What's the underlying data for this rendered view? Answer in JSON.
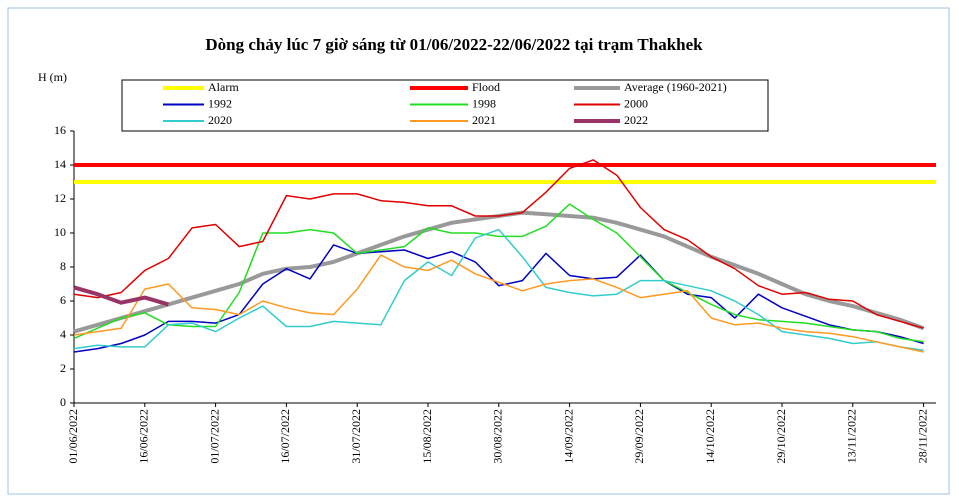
{
  "chart_data": {
    "type": "line",
    "title": "Dòng chảy lúc 7 giờ sáng từ 01/06/2022-22/06/2022 tại trạm Thakhek",
    "y_label": "H (m)",
    "categories": [
      "01/06/2022",
      null,
      null,
      "16/06/2022",
      null,
      null,
      "01/07/2022",
      null,
      null,
      "16/07/2022",
      null,
      null,
      "31/07/2022",
      null,
      null,
      "15/08/2022",
      null,
      null,
      "30/08/2022",
      null,
      null,
      "14/09/2022",
      null,
      null,
      "29/09/2022",
      null,
      null,
      "14/10/2022",
      null,
      null,
      "29/10/2022",
      null,
      null,
      "13/11/2022",
      null,
      null,
      "28/11/2022"
    ],
    "hlines": [
      {
        "name": "Alarm",
        "color": "#ffff00",
        "value": 13
      },
      {
        "name": "Flood",
        "color": "#ff0000",
        "value": 14
      }
    ],
    "series": [
      {
        "name": "Average (1960-2021)",
        "color": "#999999",
        "width": 4,
        "values": [
          4.2,
          4.6,
          5.0,
          5.4,
          5.8,
          6.2,
          6.6,
          7.0,
          7.6,
          7.9,
          8.0,
          8.3,
          8.8,
          9.3,
          9.8,
          10.2,
          10.6,
          10.8,
          11.0,
          11.2,
          11.1,
          11.0,
          10.9,
          10.6,
          10.2,
          9.8,
          9.2,
          8.6,
          8.1,
          7.6,
          7.0,
          6.4,
          6.0,
          5.7,
          5.3,
          4.9,
          4.4
        ]
      },
      {
        "name": "1992",
        "color": "#0000c0",
        "width": 1.5,
        "values": [
          3.0,
          3.2,
          3.5,
          4.0,
          4.8,
          4.8,
          4.7,
          5.2,
          7.0,
          7.9,
          7.3,
          9.3,
          8.8,
          8.9,
          9.0,
          8.5,
          8.9,
          8.3,
          6.9,
          7.2,
          8.8,
          7.5,
          7.3,
          7.4,
          8.7,
          7.2,
          6.4,
          6.2,
          5.0,
          6.4,
          5.6,
          5.1,
          4.6,
          4.3,
          4.2,
          3.9,
          3.5
        ]
      },
      {
        "name": "1998",
        "color": "#22dd22",
        "width": 1.5,
        "values": [
          3.8,
          4.4,
          5.0,
          5.3,
          4.6,
          4.5,
          4.5,
          6.5,
          10.0,
          10.0,
          10.2,
          10.0,
          8.8,
          9.0,
          9.2,
          10.3,
          10.0,
          10.0,
          9.8,
          9.8,
          10.4,
          11.7,
          10.8,
          10.0,
          8.6,
          7.2,
          6.5,
          5.8,
          5.2,
          4.9,
          4.8,
          4.7,
          4.5,
          4.3,
          4.2,
          3.8,
          3.6
        ]
      },
      {
        "name": "2000",
        "color": "#e00000",
        "width": 1.5,
        "values": [
          6.4,
          6.2,
          6.5,
          7.8,
          8.5,
          10.3,
          10.5,
          9.2,
          9.5,
          12.2,
          12.0,
          12.3,
          12.3,
          11.9,
          11.8,
          11.6,
          11.6,
          11.0,
          11.0,
          11.2,
          12.4,
          13.8,
          14.3,
          13.4,
          11.5,
          10.2,
          9.6,
          8.6,
          7.9,
          6.9,
          6.4,
          6.5,
          6.1,
          6.0,
          5.2,
          4.8,
          4.4
        ]
      },
      {
        "name": "2020",
        "color": "#33cccc",
        "width": 1.5,
        "values": [
          3.2,
          3.4,
          3.3,
          3.3,
          4.6,
          4.7,
          4.2,
          5.0,
          5.7,
          4.5,
          4.5,
          4.8,
          4.7,
          4.6,
          7.2,
          8.3,
          7.5,
          9.7,
          10.2,
          8.6,
          6.8,
          6.5,
          6.3,
          6.4,
          7.2,
          7.2,
          6.9,
          6.6,
          6.0,
          5.2,
          4.2,
          4.0,
          3.8,
          3.5,
          3.6,
          3.3,
          3.1
        ]
      },
      {
        "name": "2021",
        "color": "#ff9922",
        "width": 1.5,
        "values": [
          4.0,
          4.2,
          4.4,
          6.7,
          7.0,
          5.6,
          5.5,
          5.2,
          6.0,
          5.6,
          5.3,
          5.2,
          6.7,
          8.7,
          8.0,
          7.8,
          8.4,
          7.6,
          7.1,
          6.6,
          7.0,
          7.2,
          7.3,
          6.8,
          6.2,
          6.4,
          6.6,
          5.0,
          4.6,
          4.7,
          4.4,
          4.2,
          4.1,
          3.9,
          3.6,
          3.3,
          3.0
        ]
      },
      {
        "name": "2022",
        "color": "#993366",
        "width": 4,
        "values": [
          6.8,
          6.4,
          5.9,
          6.2,
          5.8,
          null,
          null,
          null,
          null,
          null,
          null,
          null,
          null,
          null,
          null,
          null,
          null,
          null,
          null,
          null,
          null,
          null,
          null,
          null,
          null,
          null,
          null,
          null,
          null,
          null,
          null,
          null,
          null,
          null,
          null,
          null,
          null
        ]
      }
    ],
    "ylim": [
      0,
      16
    ],
    "yticks": [
      0,
      2,
      4,
      6,
      8,
      10,
      12,
      14,
      16
    ]
  }
}
